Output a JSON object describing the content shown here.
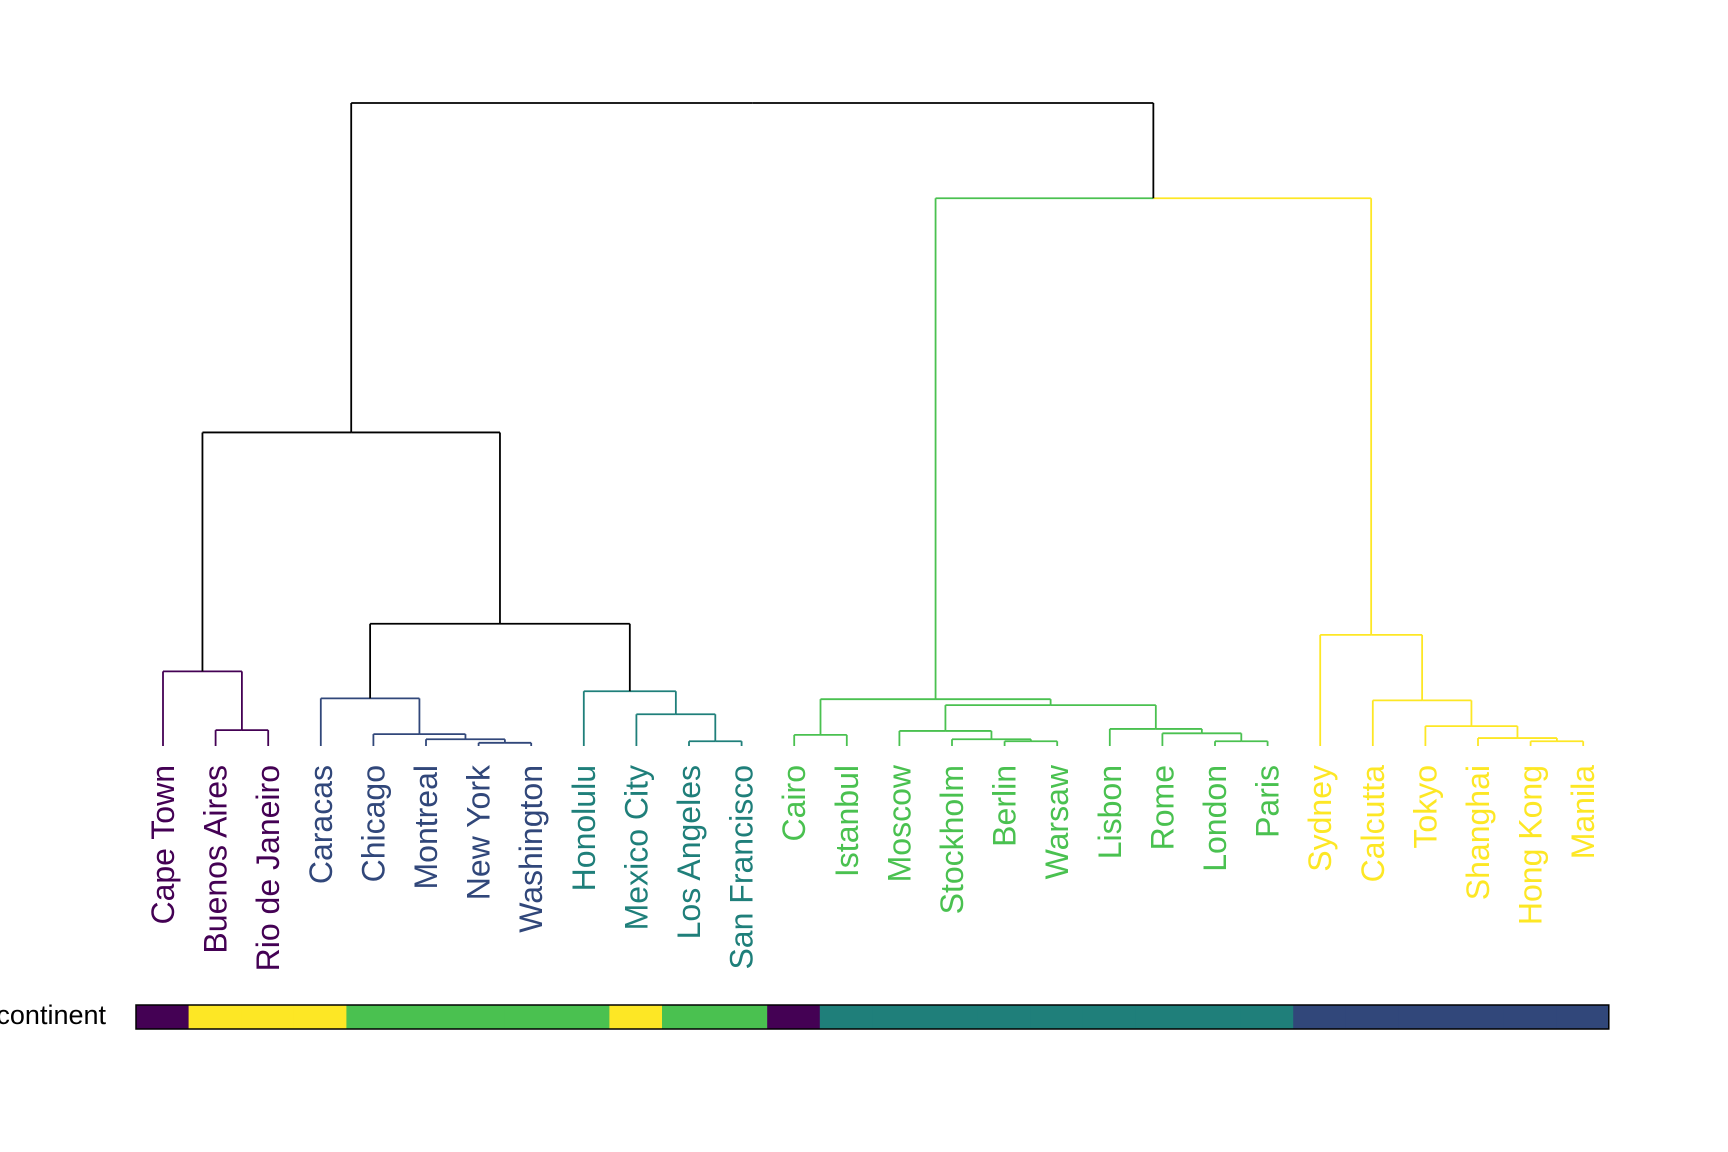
{
  "chart_data": {
    "type": "dendrogram",
    "colors": {
      "root": "#000000",
      "group1": "#440154",
      "group2": "#31477a",
      "group3": "#1f7f7a",
      "group4": "#4ac150",
      "group5": "#fde725",
      "bar_outline": "#000000"
    },
    "leaves": [
      {
        "label": "Cape Town",
        "group": "group1"
      },
      {
        "label": "Buenos Aires",
        "group": "group1"
      },
      {
        "label": "Rio de Janeiro",
        "group": "group1"
      },
      {
        "label": "Caracas",
        "group": "group2"
      },
      {
        "label": "Chicago",
        "group": "group2"
      },
      {
        "label": "Montreal",
        "group": "group2"
      },
      {
        "label": "New York",
        "group": "group2"
      },
      {
        "label": "Washington",
        "group": "group2"
      },
      {
        "label": "Honolulu",
        "group": "group3"
      },
      {
        "label": "Mexico City",
        "group": "group3"
      },
      {
        "label": "Los Angeles",
        "group": "group3"
      },
      {
        "label": "San Francisco",
        "group": "group3"
      },
      {
        "label": "Cairo",
        "group": "group4"
      },
      {
        "label": "Istanbul",
        "group": "group4"
      },
      {
        "label": "Moscow",
        "group": "group4"
      },
      {
        "label": "Stockholm",
        "group": "group4"
      },
      {
        "label": "Berlin",
        "group": "group4"
      },
      {
        "label": "Warsaw",
        "group": "group4"
      },
      {
        "label": "Lisbon",
        "group": "group4"
      },
      {
        "label": "Rome",
        "group": "group4"
      },
      {
        "label": "London",
        "group": "group4"
      },
      {
        "label": "Paris",
        "group": "group4"
      },
      {
        "label": "Sydney",
        "group": "group5"
      },
      {
        "label": "Calcutta",
        "group": "group5"
      },
      {
        "label": "Tokyo",
        "group": "group5"
      },
      {
        "label": "Shanghai",
        "group": "group5"
      },
      {
        "label": "Hong Kong",
        "group": "group5"
      },
      {
        "label": "Manila",
        "group": "group5"
      }
    ],
    "merges": [
      {
        "a": 1,
        "b": 2,
        "height": 0.4,
        "group": "group1"
      },
      {
        "a": 0,
        "b": 28,
        "height": 1.88,
        "group": "group1"
      },
      {
        "a": 6,
        "b": 7,
        "height": 0.08,
        "group": "group2"
      },
      {
        "a": 5,
        "b": 30,
        "height": 0.17,
        "group": "group2"
      },
      {
        "a": 4,
        "b": 31,
        "height": 0.3,
        "group": "group2"
      },
      {
        "a": 3,
        "b": 32,
        "height": 1.2,
        "group": "group2"
      },
      {
        "a": 10,
        "b": 11,
        "height": 0.12,
        "group": "group3"
      },
      {
        "a": 9,
        "b": 34,
        "height": 0.8,
        "group": "group3"
      },
      {
        "a": 8,
        "b": 35,
        "height": 1.38,
        "group": "group3"
      },
      {
        "a": 33,
        "b": 36,
        "height": 3.08,
        "group": "root"
      },
      {
        "a": 29,
        "b": 37,
        "height": 7.9,
        "group": "root"
      },
      {
        "a": 12,
        "b": 13,
        "height": 0.28,
        "group": "group4"
      },
      {
        "a": 16,
        "b": 17,
        "height": 0.12,
        "group": "group4"
      },
      {
        "a": 15,
        "b": 40,
        "height": 0.17,
        "group": "group4"
      },
      {
        "a": 14,
        "b": 41,
        "height": 0.38,
        "group": "group4"
      },
      {
        "a": 20,
        "b": 21,
        "height": 0.12,
        "group": "group4"
      },
      {
        "a": 19,
        "b": 43,
        "height": 0.32,
        "group": "group4"
      },
      {
        "a": 18,
        "b": 44,
        "height": 0.43,
        "group": "group4"
      },
      {
        "a": 42,
        "b": 45,
        "height": 1.03,
        "group": "group4"
      },
      {
        "a": 39,
        "b": 46,
        "height": 1.18,
        "group": "group4"
      },
      {
        "a": 26,
        "b": 27,
        "height": 0.12,
        "group": "group5"
      },
      {
        "a": 25,
        "b": 48,
        "height": 0.2,
        "group": "group5"
      },
      {
        "a": 24,
        "b": 49,
        "height": 0.5,
        "group": "group5"
      },
      {
        "a": 23,
        "b": 50,
        "height": 1.15,
        "group": "group5"
      },
      {
        "a": 22,
        "b": 51,
        "height": 2.8,
        "group": "group5"
      },
      {
        "a": 47,
        "b": 52,
        "height": 13.8,
        "group": "mixed"
      },
      {
        "a": 38,
        "b": 53,
        "height": 16.2,
        "group": "root"
      }
    ],
    "max_height": 16.2,
    "color_bar": {
      "label": "continent",
      "segments": [
        {
          "color": "#440154"
        },
        {
          "color": "#fde725"
        },
        {
          "color": "#fde725"
        },
        {
          "color": "#fde725"
        },
        {
          "color": "#4ac150"
        },
        {
          "color": "#4ac150"
        },
        {
          "color": "#4ac150"
        },
        {
          "color": "#4ac150"
        },
        {
          "color": "#4ac150"
        },
        {
          "color": "#fde725"
        },
        {
          "color": "#4ac150"
        },
        {
          "color": "#4ac150"
        },
        {
          "color": "#440154"
        },
        {
          "color": "#1f7f7a"
        },
        {
          "color": "#1f7f7a"
        },
        {
          "color": "#1f7f7a"
        },
        {
          "color": "#1f7f7a"
        },
        {
          "color": "#1f7f7a"
        },
        {
          "color": "#1f7f7a"
        },
        {
          "color": "#1f7f7a"
        },
        {
          "color": "#1f7f7a"
        },
        {
          "color": "#1f7f7a"
        },
        {
          "color": "#31477a"
        },
        {
          "color": "#31477a"
        },
        {
          "color": "#31477a"
        },
        {
          "color": "#31477a"
        },
        {
          "color": "#31477a"
        },
        {
          "color": "#31477a"
        }
      ]
    }
  }
}
